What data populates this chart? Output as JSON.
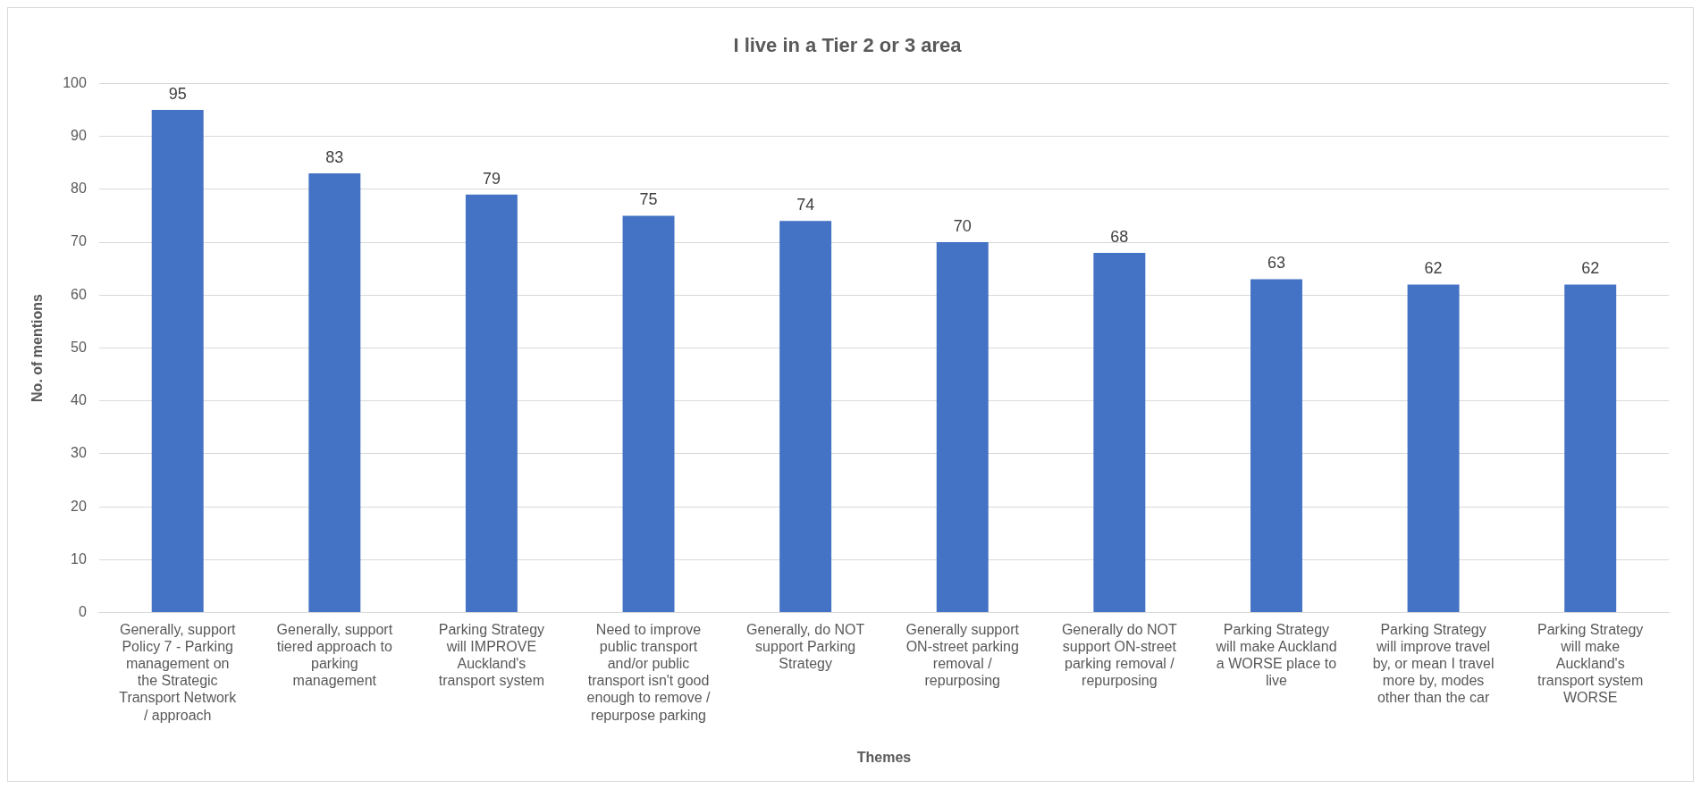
{
  "chart_data": {
    "type": "bar",
    "title": "I live in a Tier 2 or 3 area",
    "xlabel": "Themes",
    "ylabel": "No. of mentions",
    "categories": [
      "Generally, support Policy 7 - Parking management on the Strategic Transport Network / approach",
      "Generally, support tiered approach to parking management",
      "Parking Strategy will IMPROVE Auckland's transport system",
      "Need to improve public transport and/or public transport isn't good enough to remove / repurpose parking",
      "Generally, do NOT support Parking Strategy",
      "Generally support ON-street parking removal / repurposing",
      "Generally do NOT support ON-street parking removal / repurposing",
      "Parking Strategy will make Auckland a WORSE place to live",
      "Parking Strategy will improve travel by, or mean I travel more by, modes other than the car",
      "Parking Strategy will make Auckland's transport system WORSE"
    ],
    "values": [
      95,
      83,
      79,
      75,
      74,
      70,
      68,
      63,
      62,
      62
    ],
    "color": "#4472c4",
    "ylim": [
      0,
      100
    ],
    "yticks": [
      0,
      10,
      20,
      30,
      40,
      50,
      60,
      70,
      80,
      90,
      100
    ],
    "grid": "y",
    "legend": false,
    "data_labels": true
  }
}
